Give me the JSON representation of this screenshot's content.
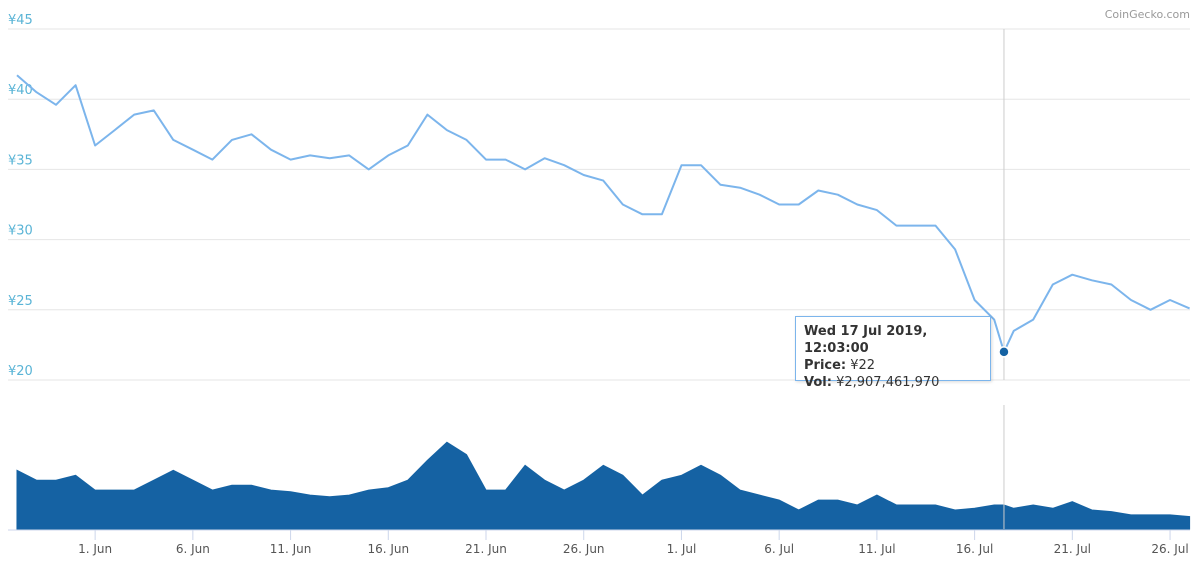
{
  "chart_data": {
    "type": "line",
    "attribution": "CoinGecko.com",
    "x": [
      "2019-05-28",
      "2019-05-29",
      "2019-05-30",
      "2019-05-31",
      "2019-06-01",
      "2019-06-02",
      "2019-06-03",
      "2019-06-04",
      "2019-06-05",
      "2019-06-06",
      "2019-06-07",
      "2019-06-08",
      "2019-06-09",
      "2019-06-10",
      "2019-06-11",
      "2019-06-12",
      "2019-06-13",
      "2019-06-14",
      "2019-06-15",
      "2019-06-16",
      "2019-06-17",
      "2019-06-18",
      "2019-06-19",
      "2019-06-20",
      "2019-06-21",
      "2019-06-22",
      "2019-06-23",
      "2019-06-24",
      "2019-06-25",
      "2019-06-26",
      "2019-06-27",
      "2019-06-28",
      "2019-06-29",
      "2019-06-30",
      "2019-07-01",
      "2019-07-02",
      "2019-07-03",
      "2019-07-04",
      "2019-07-05",
      "2019-07-06",
      "2019-07-07",
      "2019-07-08",
      "2019-07-09",
      "2019-07-10",
      "2019-07-11",
      "2019-07-12",
      "2019-07-13",
      "2019-07-14",
      "2019-07-15",
      "2019-07-16",
      "2019-07-17",
      "2019-07-17T12:03:00",
      "2019-07-18",
      "2019-07-19",
      "2019-07-20",
      "2019-07-21",
      "2019-07-22",
      "2019-07-23",
      "2019-07-24",
      "2019-07-25",
      "2019-07-26",
      "2019-07-27"
    ],
    "price": {
      "color": "#7cb5ec",
      "values": [
        41.7,
        40.5,
        39.6,
        41.0,
        36.7,
        37.8,
        38.9,
        39.2,
        37.1,
        36.4,
        35.7,
        37.1,
        37.5,
        36.4,
        35.7,
        36.0,
        35.8,
        36.0,
        35.0,
        36.0,
        36.7,
        38.9,
        37.8,
        37.1,
        35.7,
        35.7,
        35.0,
        35.8,
        35.3,
        34.6,
        34.2,
        32.5,
        31.8,
        31.8,
        35.3,
        35.3,
        33.9,
        33.7,
        33.2,
        32.5,
        32.5,
        33.5,
        33.2,
        32.5,
        32.1,
        31.0,
        31.0,
        31.0,
        29.3,
        25.7,
        24.3,
        22,
        23.5,
        24.3,
        26.8,
        27.5,
        27.1,
        26.8,
        25.7,
        25.0,
        25.7,
        25.1
      ]
    },
    "volume": {
      "color": "#1562a3",
      "values": [
        7100000000,
        5900000000,
        5900000000,
        6500000000,
        4700000000,
        4700000000,
        4700000000,
        5900000000,
        7100000000,
        5900000000,
        4700000000,
        5300000000,
        5300000000,
        4700000000,
        4500000000,
        4100000000,
        3900000000,
        4100000000,
        4700000000,
        5000000000,
        5900000000,
        8300000000,
        10500000000,
        9000000000,
        4700000000,
        4700000000,
        7700000000,
        5900000000,
        4700000000,
        5900000000,
        7700000000,
        6500000000,
        4100000000,
        5900000000,
        6500000000,
        7700000000,
        6500000000,
        4700000000,
        4100000000,
        3500000000,
        2300000000,
        3500000000,
        3500000000,
        2900000000,
        4100000000,
        2900000000,
        2900000000,
        2900000000,
        2300000000,
        2500000000,
        2900000000,
        2907461970,
        2500000000,
        2900000000,
        2500000000,
        3300000000,
        2300000000,
        2100000000,
        1700000000,
        1700000000,
        1700000000,
        1500000000
      ]
    },
    "xlim": [
      "2019-05-27T13:00:00",
      "2019-07-27T00:30:00"
    ],
    "xticks": [
      {
        "value": "2019-06-01",
        "label": "1. Jun"
      },
      {
        "value": "2019-06-06",
        "label": "6. Jun"
      },
      {
        "value": "2019-06-11",
        "label": "11. Jun"
      },
      {
        "value": "2019-06-16",
        "label": "16. Jun"
      },
      {
        "value": "2019-06-21",
        "label": "21. Jun"
      },
      {
        "value": "2019-06-26",
        "label": "26. Jun"
      },
      {
        "value": "2019-07-01",
        "label": "1. Jul"
      },
      {
        "value": "2019-07-06",
        "label": "6. Jul"
      },
      {
        "value": "2019-07-11",
        "label": "11. Jul"
      },
      {
        "value": "2019-07-16",
        "label": "16. Jul"
      },
      {
        "value": "2019-07-21",
        "label": "21. Jul"
      },
      {
        "value": "2019-07-26",
        "label": "26. Jul"
      }
    ],
    "ylim": [
      20,
      45
    ],
    "yticks": [
      {
        "value": 20,
        "label": "¥20"
      },
      {
        "value": 25,
        "label": "¥25"
      },
      {
        "value": 30,
        "label": "¥30"
      },
      {
        "value": 35,
        "label": "¥35"
      },
      {
        "value": 40,
        "label": "¥40"
      },
      {
        "value": 45,
        "label": "¥45"
      }
    ],
    "vlim": [
      0,
      15000000000
    ],
    "grid": true,
    "tooltip": {
      "index": 51,
      "title": "Wed 17 Jul 2019, 12:03:00",
      "price_label": "Price:",
      "price": "¥22",
      "vol_label": "Vol:",
      "vol": "¥2,907,461,970"
    }
  }
}
